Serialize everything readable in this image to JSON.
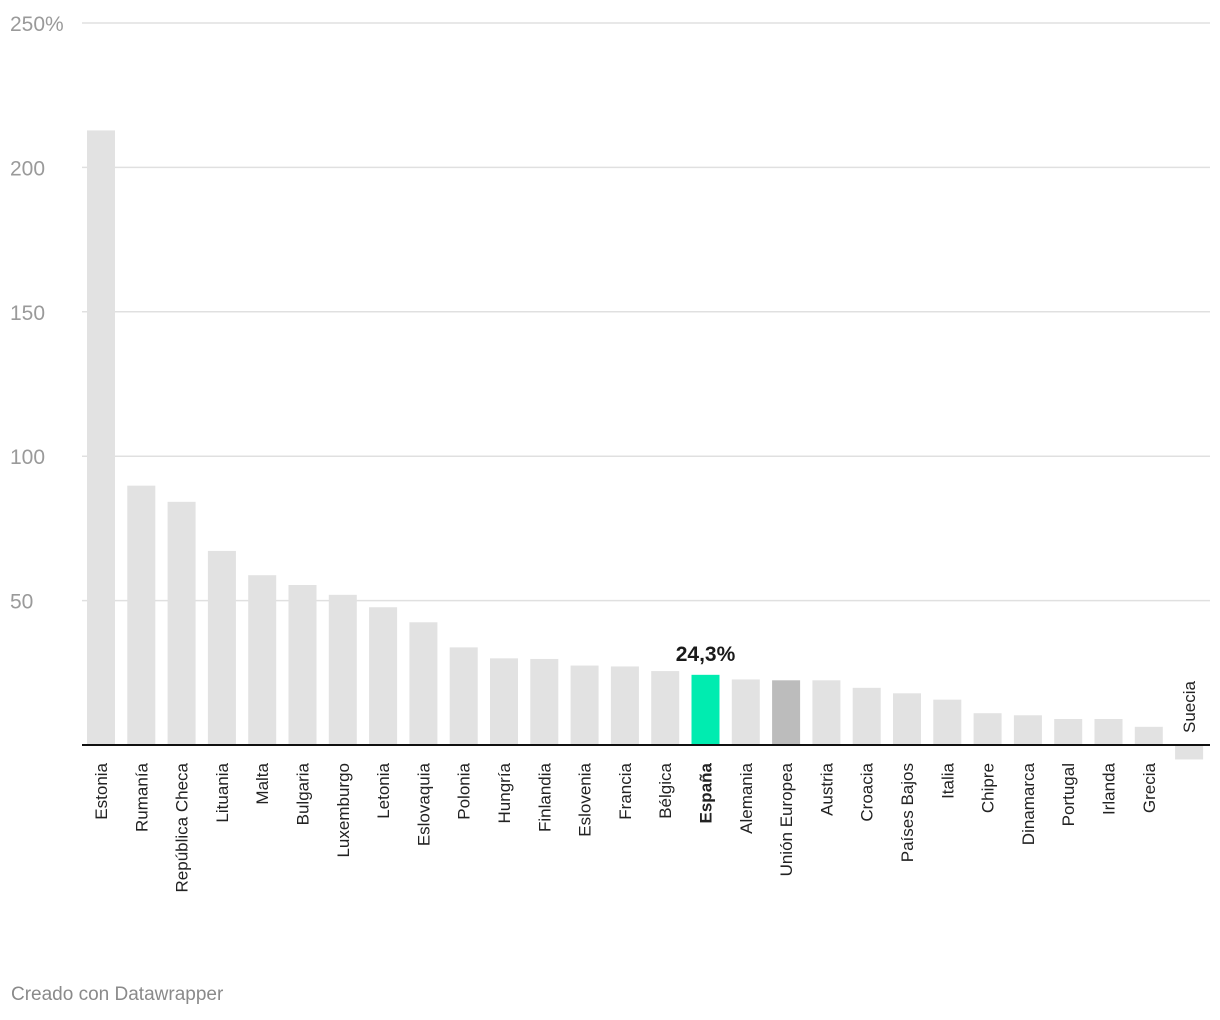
{
  "chart_data": {
    "type": "bar",
    "categories": [
      "Estonia",
      "Rumanía",
      "República Checa",
      "Lituania",
      "Malta",
      "Bulgaria",
      "Luxemburgo",
      "Letonia",
      "Eslovaquia",
      "Polonia",
      "Hungría",
      "Finlandia",
      "Eslovenia",
      "Francia",
      "Bélgica",
      "España",
      "Alemania",
      "Unión Europea",
      "Austria",
      "Croacia",
      "Países Bajos",
      "Italia",
      "Chipre",
      "Dinamarca",
      "Portugal",
      "Irlanda",
      "Grecia",
      "Suecia"
    ],
    "values": [
      212.8,
      89.8,
      84.2,
      67.2,
      58.8,
      55.4,
      52.0,
      47.7,
      42.5,
      33.8,
      30.0,
      29.8,
      27.5,
      27.2,
      25.6,
      24.3,
      22.7,
      22.4,
      22.4,
      19.8,
      17.9,
      15.7,
      11.0,
      10.3,
      9.0,
      9.0,
      6.3,
      -5.0
    ],
    "ylim": [
      -5,
      250
    ],
    "yticks": [
      50,
      100,
      150,
      200,
      250
    ],
    "ytick_labels": [
      "50",
      "100",
      "150",
      "200",
      "250%"
    ],
    "grid": true,
    "highlight": {
      "category": "España",
      "label": "24,3%",
      "color": "#00ecb0"
    },
    "reference": {
      "category": "Unión Europea",
      "color": "#bcbcbc"
    },
    "bar_color": "#e2e2e2"
  },
  "credit": "Creado con Datawrapper"
}
